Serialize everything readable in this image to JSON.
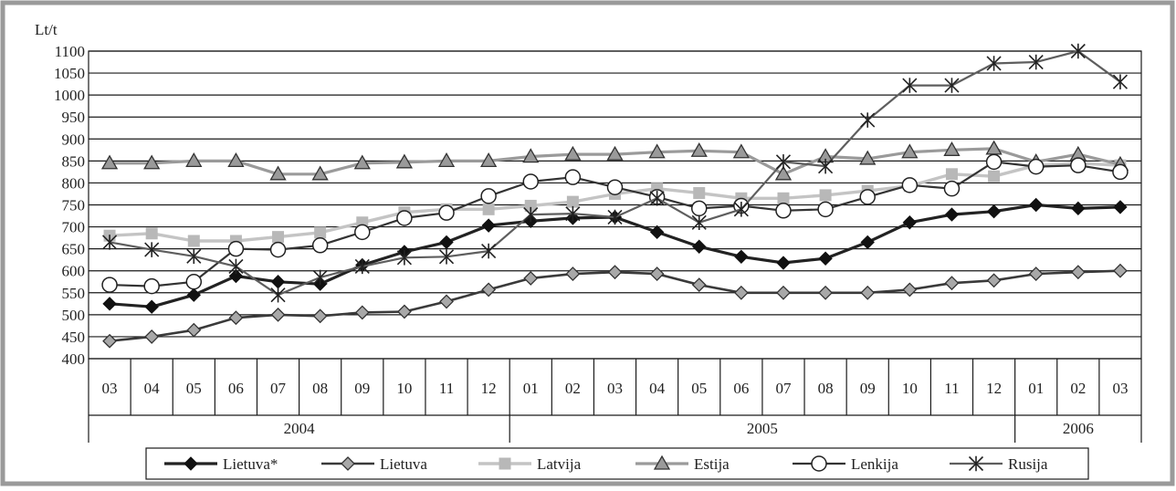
{
  "chart_data": {
    "type": "line",
    "ylabel": "Lt/t",
    "ylim": [
      400,
      1100
    ],
    "ytick_step": 50,
    "grid": true,
    "legend_position": "bottom",
    "categories": [
      "03",
      "04",
      "05",
      "06",
      "07",
      "08",
      "09",
      "10",
      "11",
      "12",
      "01",
      "02",
      "03",
      "04",
      "05",
      "06",
      "07",
      "08",
      "09",
      "10",
      "11",
      "12",
      "01",
      "02",
      "03"
    ],
    "year_groups": [
      {
        "label": "2004",
        "start": 0,
        "end": 9
      },
      {
        "label": "2005",
        "start": 10,
        "end": 21
      },
      {
        "label": "2006",
        "start": 22,
        "end": 24
      }
    ],
    "series": [
      {
        "name": "Lietuva*",
        "color": "#222222",
        "marker": "diamond-filled",
        "values": [
          525,
          518,
          545,
          588,
          575,
          570,
          613,
          643,
          665,
          703,
          713,
          720,
          722,
          688,
          655,
          632,
          618,
          628,
          665,
          710,
          728,
          735,
          750,
          742,
          745
        ]
      },
      {
        "name": "Lietuva",
        "color": "#3a3a3a",
        "marker": "diamond-gray",
        "values": [
          440,
          450,
          465,
          493,
          500,
          497,
          505,
          507,
          530,
          557,
          583,
          593,
          597,
          593,
          568,
          550,
          550,
          550,
          550,
          557,
          572,
          578,
          593,
          597,
          600
        ]
      },
      {
        "name": "Latvija",
        "color": "#c4c4c4",
        "marker": "square",
        "values": [
          680,
          685,
          668,
          668,
          677,
          687,
          710,
          733,
          740,
          740,
          748,
          757,
          775,
          787,
          777,
          765,
          765,
          772,
          782,
          793,
          820,
          815,
          840,
          845,
          840
        ]
      },
      {
        "name": "Estija",
        "color": "#9a9a9a",
        "marker": "triangle",
        "values": [
          845,
          845,
          850,
          850,
          820,
          820,
          845,
          847,
          850,
          850,
          860,
          865,
          865,
          870,
          873,
          870,
          820,
          860,
          855,
          870,
          875,
          878,
          848,
          865,
          842
        ]
      },
      {
        "name": "Lenkija",
        "color": "#333333",
        "marker": "circle",
        "values": [
          568,
          565,
          575,
          650,
          648,
          658,
          688,
          720,
          732,
          770,
          803,
          813,
          790,
          768,
          742,
          748,
          737,
          740,
          768,
          795,
          787,
          848,
          837,
          840,
          825
        ]
      },
      {
        "name": "Rusija",
        "color": "#5e5e5e",
        "marker": "star",
        "values": [
          665,
          648,
          633,
          610,
          545,
          585,
          610,
          630,
          632,
          645,
          728,
          730,
          722,
          765,
          710,
          740,
          848,
          838,
          943,
          1022,
          1022,
          1072,
          1075,
          1100,
          1030
        ]
      }
    ]
  }
}
